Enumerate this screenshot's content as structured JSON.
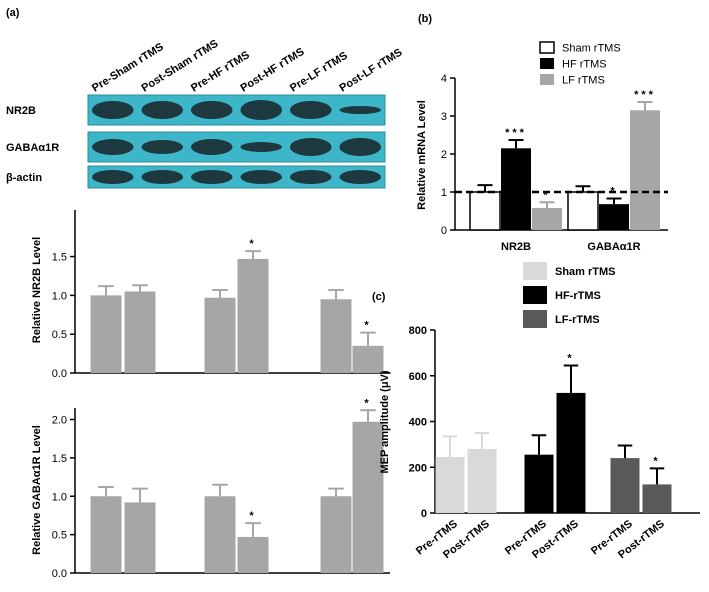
{
  "blot": {
    "panel": "(a)",
    "lanes": [
      "Pre-Sham rTMS",
      "Post-Sham rTMS",
      "Pre-HF rTMS",
      "Post-HF rTMS",
      "Pre-LF rTMS",
      "Post-LF rTMS"
    ],
    "rows": [
      "NR2B",
      "GABAα1R",
      "β-actin"
    ]
  },
  "chart_data": [
    {
      "type": "bar",
      "ylabel": "Relative NR2B Level",
      "values": [
        1.0,
        1.05,
        0.97,
        1.47,
        0.95,
        0.35
      ],
      "errors": [
        0.12,
        0.08,
        0.1,
        0.1,
        0.12,
        0.17
      ],
      "significance": [
        null,
        null,
        null,
        "*",
        null,
        "*"
      ],
      "color": "#a6a6a6",
      "ylim": [
        0,
        2.1
      ],
      "yticks": [
        {
          "value": 0,
          "label": "0.0"
        },
        0.5,
        {
          "value": 1,
          "label": "1.0"
        },
        1.5
      ]
    },
    {
      "type": "bar",
      "ylabel": "Relative GABAα1R Level",
      "values": [
        1.0,
        0.92,
        1.0,
        0.47,
        1.0,
        1.97
      ],
      "errors": [
        0.12,
        0.18,
        0.15,
        0.18,
        0.1,
        0.15
      ],
      "significance": [
        null,
        null,
        null,
        "*",
        null,
        "*"
      ],
      "color": "#a6a6a6",
      "ylim": [
        0,
        2.15
      ],
      "yticks": [
        {
          "value": 0,
          "label": "0.0"
        },
        0.5,
        {
          "value": 1,
          "label": "1.0"
        },
        1.5,
        {
          "value": 2,
          "label": "2.0"
        }
      ]
    },
    {
      "type": "grouped_bar",
      "panel": "(b)",
      "ylabel": "Relative mRNA Level",
      "categories": [
        "NR2B",
        "GABAα1R"
      ],
      "series": [
        {
          "name": "Sham rTMS",
          "color": "#ffffff",
          "values": [
            1.0,
            1.0
          ],
          "errors": [
            0.18,
            0.15
          ],
          "significance": [
            null,
            null
          ]
        },
        {
          "name": "HF rTMS",
          "color": "#000000",
          "values": [
            2.15,
            0.68
          ],
          "errors": [
            0.22,
            0.15
          ],
          "significance": [
            "***",
            "*"
          ]
        },
        {
          "name": "LF rTMS",
          "color": "#a6a6a6",
          "values": [
            0.58,
            3.15
          ],
          "errors": [
            0.15,
            0.22
          ],
          "significance": [
            "*",
            "***"
          ]
        }
      ],
      "reference_line": 1,
      "ylim": [
        0,
        4
      ],
      "yticks": [
        0,
        1,
        2,
        3,
        4
      ]
    },
    {
      "type": "grouped_bar",
      "panel": "(c)",
      "ylabel": "MEP amplitude (μV)",
      "categories": [
        "Pre-rTMS",
        "Post-rTMS"
      ],
      "series": [
        {
          "name": "Sham rTMS",
          "color": "#d9d9d9",
          "values": [
            245,
            280
          ],
          "errors": [
            90,
            70
          ],
          "significance": [
            null,
            null
          ]
        },
        {
          "name": "HF-rTMS",
          "color": "#000000",
          "values": [
            255,
            525
          ],
          "errors": [
            85,
            120
          ],
          "significance": [
            null,
            "*"
          ]
        },
        {
          "name": "LF-rTMS",
          "color": "#595959",
          "values": [
            240,
            125
          ],
          "errors": [
            55,
            70
          ],
          "significance": [
            null,
            "*"
          ]
        }
      ],
      "ylim": [
        0,
        800
      ],
      "yticks": [
        0,
        200,
        400,
        600,
        800
      ]
    }
  ]
}
